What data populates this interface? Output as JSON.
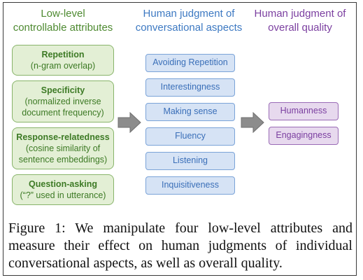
{
  "columns": {
    "attributes_title": [
      "Low-level",
      "controllable attributes"
    ],
    "aspects_title": [
      "Human judgment of",
      "conversational aspects"
    ],
    "quality_title": [
      "Human judgment of",
      "overall quality"
    ]
  },
  "attributes": [
    {
      "title": "Repetition",
      "desc": [
        "(n-gram overlap)"
      ]
    },
    {
      "title": "Specificity",
      "desc": [
        "(normalized inverse",
        "document frequency)"
      ]
    },
    {
      "title": "Response-relatedness",
      "desc": [
        "(cosine similarity of",
        "sentence embeddings)"
      ]
    },
    {
      "title": "Question-asking",
      "desc": [
        "(“?” used in utterance)"
      ]
    }
  ],
  "aspects": [
    "Avoiding Repetition",
    "Interestingness",
    "Making sense",
    "Fluency",
    "Listening",
    "Inquisitiveness"
  ],
  "quality": [
    "Humanness",
    "Engagingness"
  ],
  "caption": "Figure 1: We manipulate four low-level attributes and measure their effect on human judgments of individual conversational aspects, as well as overall quality.",
  "colors": {
    "green": "#4e8a31",
    "blue": "#3d79c2",
    "purple": "#7b3fa0",
    "arrow": "#8c8c8c"
  }
}
